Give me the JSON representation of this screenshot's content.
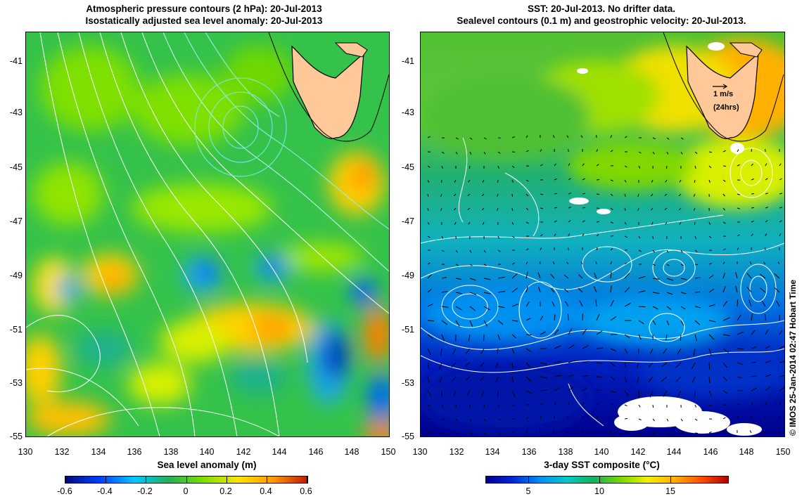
{
  "left_panel": {
    "title_line1": "Atmospheric pressure contours (2 hPa): 20-Jul-2013",
    "title_line2": "Isostatically adjusted sea level anomaly: 20-Jul-2013",
    "x_label": "Sea level anomaly (m)",
    "colorbar": {
      "ticks": [
        "-0.6",
        "-0.4",
        "-0.2",
        "0",
        "0.2",
        "0.4",
        "0.6"
      ],
      "colors": [
        "#000a7a",
        "#0040ff",
        "#00c8ff",
        "#21b05a",
        "#7fe000",
        "#ffe400",
        "#ff9a00",
        "#c01800"
      ]
    }
  },
  "right_panel": {
    "title_line1": "SST: 20-Jul-2013. No drifter data.",
    "title_line2": "Sealevel contours (0.1 m) and geostrophic velocity: 20-Jul-2013.",
    "x_label": "3-day SST composite (°C)",
    "vector_key_speed": "1 m/s",
    "vector_key_period": "(24hrs)",
    "colorbar": {
      "ticks": [
        "5",
        "10",
        "15"
      ],
      "range": [
        2,
        19
      ],
      "colors": [
        "#00008c",
        "#0028d8",
        "#0090f0",
        "#00c8c8",
        "#18b060",
        "#78d800",
        "#f0f000",
        "#ffb000",
        "#ff5000",
        "#b00000"
      ]
    }
  },
  "longitudes": [
    "130",
    "132",
    "134",
    "136",
    "138",
    "140",
    "142",
    "144",
    "146",
    "148",
    "150"
  ],
  "latitudes": [
    "-41",
    "-43",
    "-45",
    "-47",
    "-49",
    "-51",
    "-53",
    "-55"
  ],
  "credit": "© IMOS 25-Jan-2014 02:47 Hobart Time",
  "colors": {
    "land": "#ffc898",
    "pressure_contour": "#ffffff",
    "pressure_contour_cyan": "#7fe8f0",
    "sealevel_contour": "#ffffff",
    "velocity_arrow": "#000000"
  }
}
